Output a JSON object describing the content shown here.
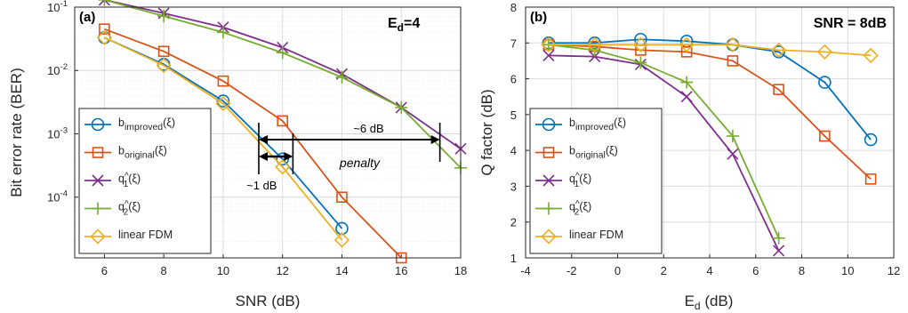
{
  "chart_data": [
    {
      "type": "line",
      "panel_label": "(a)",
      "corner_label": "E_d=4",
      "xlabel": "SNR (dB)",
      "ylabel": "Bit error rate (BER)",
      "y_scale": "log",
      "xlim": [
        5,
        18
      ],
      "ylim": [
        1.1e-05,
        0.1
      ],
      "xticks": [
        6,
        8,
        10,
        12,
        14,
        16,
        18
      ],
      "yticks": [
        {
          "value": 0.1,
          "label": "10^-1"
        },
        {
          "value": 0.01,
          "label": "10^-2"
        },
        {
          "value": 0.001,
          "label": "10^-3"
        },
        {
          "value": 0.0001,
          "label": "10^-4"
        }
      ],
      "grid": true,
      "legend_position": "bottom-left",
      "series": [
        {
          "name": "b_improved(ξ)",
          "base": "b",
          "sub": "improved",
          "arg": "(ξ)",
          "marker": "circle",
          "color": "#0072BD",
          "x": [
            6,
            8,
            10,
            12,
            14
          ],
          "y": [
            0.033,
            0.0125,
            0.0033,
            0.0004,
            3.2e-05
          ]
        },
        {
          "name": "b_original(ξ)",
          "base": "b",
          "sub": "original",
          "arg": "(ξ)",
          "marker": "square",
          "color": "#D95319",
          "x": [
            6,
            8,
            10,
            12,
            14,
            16
          ],
          "y": [
            0.045,
            0.02,
            0.0068,
            0.0016,
            0.0001,
            1.1e-05
          ]
        },
        {
          "name": "q^_1(ξ)",
          "base": "q",
          "sub": "1",
          "arg": "(ξ)",
          "hat": true,
          "marker": "x",
          "color": "#7E2F8E",
          "x": [
            6,
            8,
            10,
            12,
            14,
            16,
            18
          ],
          "y": [
            0.13,
            0.08,
            0.048,
            0.023,
            0.0088,
            0.0026,
            0.00058
          ]
        },
        {
          "name": "q^_2(ξ)",
          "base": "q",
          "sub": "2",
          "arg": "(ξ)",
          "hat": true,
          "marker": "plus",
          "color": "#77AC30",
          "x": [
            6,
            8,
            10,
            12,
            14,
            16,
            18
          ],
          "y": [
            0.13,
            0.072,
            0.04,
            0.019,
            0.0078,
            0.0026,
            0.00029
          ]
        },
        {
          "name": "linear FDM",
          "base": "linear FDM",
          "sub": "",
          "arg": "",
          "marker": "diamond",
          "color": "#EDB120",
          "x": [
            6,
            8,
            10,
            12,
            14
          ],
          "y": [
            0.033,
            0.012,
            0.003,
            0.0003,
            2.1e-05
          ]
        }
      ],
      "annotations": {
        "six_db": "~6 dB",
        "one_db": "~1 dB",
        "penalty": "penalty"
      }
    },
    {
      "type": "line",
      "panel_label": "(b)",
      "corner_label": "SNR = 8dB",
      "xlabel": "E_d (dB)",
      "ylabel": "Q factor (dB)",
      "xlim": [
        -4,
        12
      ],
      "ylim": [
        1,
        8
      ],
      "xticks": [
        -4,
        -2,
        0,
        2,
        4,
        6,
        8,
        10,
        12
      ],
      "yticks": [
        1,
        2,
        3,
        4,
        5,
        6,
        7,
        8
      ],
      "grid": true,
      "legend_position": "bottom-left",
      "series": [
        {
          "name": "b_improved(ξ)",
          "base": "b",
          "sub": "improved",
          "arg": "(ξ)",
          "marker": "circle",
          "color": "#0072BD",
          "x": [
            -3,
            -1,
            1,
            3,
            5,
            7,
            9,
            11
          ],
          "y": [
            7.0,
            7.0,
            7.1,
            7.05,
            6.95,
            6.75,
            5.9,
            4.3
          ]
        },
        {
          "name": "b_original(ξ)",
          "base": "b",
          "sub": "original",
          "arg": "(ξ)",
          "marker": "square",
          "color": "#D95319",
          "x": [
            -3,
            -1,
            1,
            3,
            5,
            7,
            9,
            11
          ],
          "y": [
            6.95,
            6.9,
            6.8,
            6.75,
            6.5,
            5.7,
            4.4,
            3.2
          ]
        },
        {
          "name": "q^_1(ξ)",
          "base": "q",
          "sub": "1",
          "arg": "(ξ)",
          "hat": true,
          "marker": "x",
          "color": "#7E2F8E",
          "x": [
            -3,
            -1,
            1,
            3,
            5,
            7
          ],
          "y": [
            6.65,
            6.62,
            6.4,
            5.5,
            3.9,
            1.2
          ]
        },
        {
          "name": "q^_2(ξ)",
          "base": "q",
          "sub": "2",
          "arg": "(ξ)",
          "hat": true,
          "marker": "plus",
          "color": "#77AC30",
          "x": [
            -3,
            -1,
            1,
            3,
            5,
            7
          ],
          "y": [
            6.95,
            6.8,
            6.45,
            5.9,
            4.4,
            1.55
          ]
        },
        {
          "name": "linear FDM",
          "base": "linear FDM",
          "sub": "",
          "arg": "",
          "marker": "diamond",
          "color": "#EDB120",
          "x": [
            -3,
            -1,
            1,
            3,
            5,
            7,
            9,
            11
          ],
          "y": [
            6.95,
            6.95,
            6.95,
            6.95,
            6.95,
            6.8,
            6.75,
            6.65
          ]
        }
      ]
    }
  ]
}
